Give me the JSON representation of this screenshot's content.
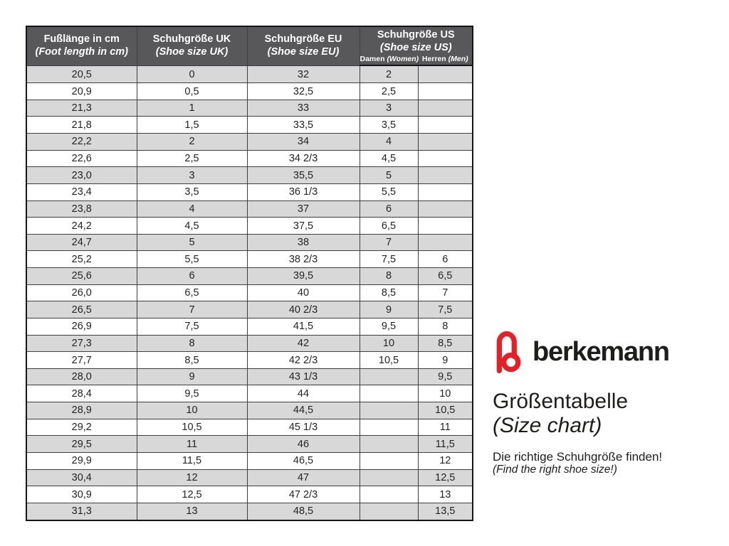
{
  "brand": {
    "name": "berkemann",
    "logo_icon": "berkemann-b-logo",
    "logo_color": "#e32128",
    "text_color": "#1d1d1b"
  },
  "title": {
    "de": "Größentabelle",
    "en": "(Size chart)"
  },
  "tagline": {
    "de": "Die richtige Schuhgröße finden!",
    "en": "(Find the right shoe size!)"
  },
  "table": {
    "colors": {
      "header_bg": "#58585a",
      "header_text": "#ffffff",
      "stripe_row": "#d8d8d8",
      "plain_row": "#ffffff",
      "border": "#3f3f3f"
    },
    "headers": {
      "foot_length": {
        "de": "Fußlänge in cm",
        "en": "(Foot length in cm)"
      },
      "uk": {
        "de": "Schuhgröße UK",
        "en": "(Shoe size UK)"
      },
      "eu": {
        "de": "Schuhgröße EU",
        "en": "(Shoe size EU)"
      },
      "us": {
        "de": "Schuhgröße US",
        "en": "(Shoe size US)",
        "sub": {
          "women": {
            "de": "Damen",
            "en": "(Women)"
          },
          "men": {
            "de": "Herren",
            "en": "(Men)"
          }
        }
      }
    },
    "rows": [
      [
        "20,5",
        "0",
        "32",
        "2",
        ""
      ],
      [
        "20,9",
        "0,5",
        "32,5",
        "2,5",
        ""
      ],
      [
        "21,3",
        "1",
        "33",
        "3",
        ""
      ],
      [
        "21,8",
        "1,5",
        "33,5",
        "3,5",
        ""
      ],
      [
        "22,2",
        "2",
        "34",
        "4",
        ""
      ],
      [
        "22,6",
        "2,5",
        "34 2/3",
        "4,5",
        ""
      ],
      [
        "23,0",
        "3",
        "35,5",
        "5",
        ""
      ],
      [
        "23,4",
        "3,5",
        "36 1/3",
        "5,5",
        ""
      ],
      [
        "23,8",
        "4",
        "37",
        "6",
        ""
      ],
      [
        "24,2",
        "4,5",
        "37,5",
        "6,5",
        ""
      ],
      [
        "24,7",
        "5",
        "38",
        "7",
        ""
      ],
      [
        "25,2",
        "5,5",
        "38 2/3",
        "7,5",
        "6"
      ],
      [
        "25,6",
        "6",
        "39,5",
        "8",
        "6,5"
      ],
      [
        "26,0",
        "6,5",
        "40",
        "8,5",
        "7"
      ],
      [
        "26,5",
        "7",
        "40 2/3",
        "9",
        "7,5"
      ],
      [
        "26,9",
        "7,5",
        "41,5",
        "9,5",
        "8"
      ],
      [
        "27,3",
        "8",
        "42",
        "10",
        "8,5"
      ],
      [
        "27,7",
        "8,5",
        "42 2/3",
        "10,5",
        "9"
      ],
      [
        "28,0",
        "9",
        "43 1/3",
        "",
        "9,5"
      ],
      [
        "28,4",
        "9,5",
        "44",
        "",
        "10"
      ],
      [
        "28,9",
        "10",
        "44,5",
        "",
        "10,5"
      ],
      [
        "29,2",
        "10,5",
        "45 1/3",
        "",
        "11"
      ],
      [
        "29,5",
        "11",
        "46",
        "",
        "11,5"
      ],
      [
        "29,9",
        "11,5",
        "46,5",
        "",
        "12"
      ],
      [
        "30,4",
        "12",
        "47",
        "",
        "12,5"
      ],
      [
        "30,9",
        "12,5",
        "47 2/3",
        "",
        "13"
      ],
      [
        "31,3",
        "13",
        "48,5",
        "",
        "13,5"
      ]
    ]
  }
}
